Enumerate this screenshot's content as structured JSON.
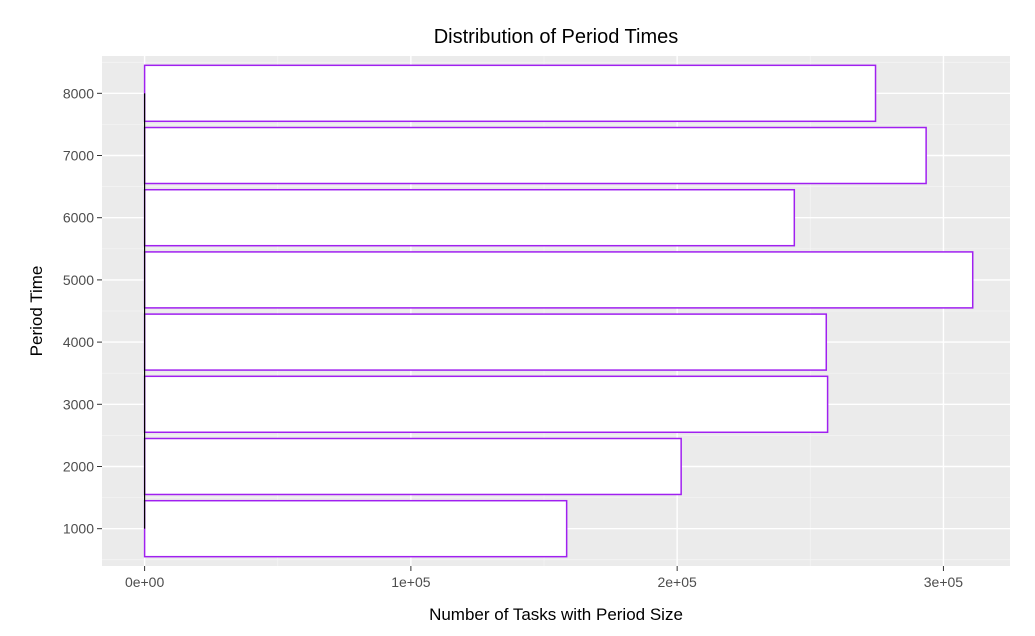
{
  "chart_data": {
    "type": "bar",
    "orientation": "horizontal",
    "title": "Distribution of Period Times",
    "xlabel": "Number of Tasks with Period Size",
    "ylabel": "Period Time",
    "categories": [
      1000,
      2000,
      3000,
      4000,
      5000,
      6000,
      7000,
      8000
    ],
    "values": [
      158500,
      201500,
      256500,
      256000,
      311000,
      244000,
      293500,
      274500
    ],
    "xlim": [
      -16000,
      325000
    ],
    "ylim": [
      400,
      8600
    ],
    "xticks": [
      0,
      100000,
      200000,
      300000
    ],
    "xtick_labels": [
      "0e+00",
      "1e+05",
      "2e+05",
      "3e+05"
    ],
    "yticks": [
      1000,
      2000,
      3000,
      4000,
      5000,
      6000,
      7000,
      8000
    ],
    "ytick_labels": [
      "1000",
      "2000",
      "3000",
      "4000",
      "5000",
      "6000",
      "7000",
      "8000"
    ],
    "bar_width": 900,
    "grid": true,
    "legend": "none",
    "colors": {
      "panel_background": "#EBEBEB",
      "bar_fill": "#FFFFFF",
      "bar_outline": "#A020F0",
      "grid": "#FFFFFF",
      "baseline": "#000000"
    }
  }
}
